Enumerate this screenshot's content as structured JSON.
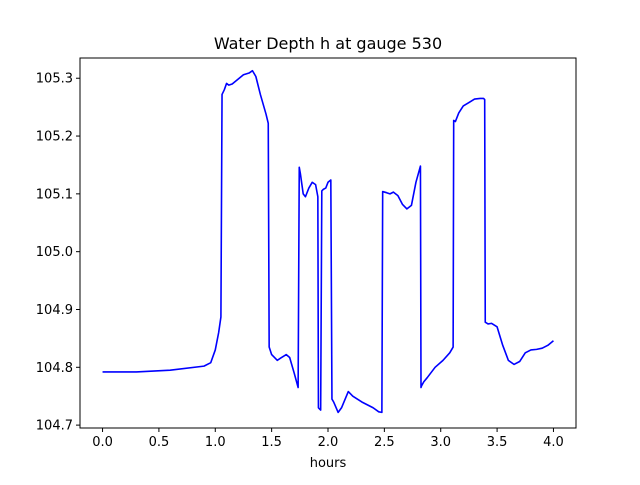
{
  "chart_data": {
    "type": "line",
    "title": "Water Depth h at gauge 530",
    "xlabel": "hours",
    "ylabel": "",
    "xlim": [
      -0.2,
      4.2
    ],
    "ylim": [
      104.695,
      105.335
    ],
    "xticks": [
      0.0,
      0.5,
      1.0,
      1.5,
      2.0,
      2.5,
      3.0,
      3.5,
      4.0
    ],
    "xtick_labels": [
      "0.0",
      "0.5",
      "1.0",
      "1.5",
      "2.0",
      "2.5",
      "3.0",
      "3.5",
      "4.0"
    ],
    "yticks": [
      104.7,
      104.8,
      104.9,
      105.0,
      105.1,
      105.2,
      105.3
    ],
    "ytick_labels": [
      "104.7",
      "104.8",
      "104.9",
      "105.0",
      "105.1",
      "105.2",
      "105.3"
    ],
    "grid": false,
    "series": [
      {
        "color": "#0000ff",
        "x": [
          0.0,
          0.3,
          0.6,
          0.9,
          0.96,
          1.0,
          1.03,
          1.05,
          1.06,
          1.08,
          1.1,
          1.12,
          1.15,
          1.2,
          1.25,
          1.3,
          1.33,
          1.36,
          1.4,
          1.45,
          1.47,
          1.478,
          1.5,
          1.55,
          1.58,
          1.63,
          1.66,
          1.7,
          1.735,
          1.745,
          1.755,
          1.78,
          1.8,
          1.83,
          1.86,
          1.89,
          1.91,
          1.915,
          1.935,
          1.945,
          1.96,
          1.98,
          2.0,
          2.025,
          2.035,
          2.05,
          2.09,
          2.12,
          2.18,
          2.22,
          2.3,
          2.4,
          2.45,
          2.478,
          2.485,
          2.52,
          2.55,
          2.58,
          2.62,
          2.66,
          2.7,
          2.74,
          2.78,
          2.82,
          2.825,
          2.83,
          2.85,
          2.88,
          2.95,
          3.02,
          3.08,
          3.11,
          3.115,
          3.13,
          3.16,
          3.2,
          3.25,
          3.3,
          3.35,
          3.38,
          3.39,
          3.395,
          3.42,
          3.45,
          3.5,
          3.55,
          3.6,
          3.65,
          3.7,
          3.75,
          3.8,
          3.85,
          3.9,
          3.95,
          4.0
        ],
        "y": [
          104.792,
          104.792,
          104.795,
          104.802,
          104.808,
          104.83,
          104.86,
          104.887,
          105.272,
          105.28,
          105.291,
          105.288,
          105.29,
          105.298,
          105.306,
          105.309,
          105.313,
          105.303,
          105.272,
          105.238,
          105.222,
          104.835,
          104.822,
          104.812,
          104.816,
          104.822,
          104.817,
          104.79,
          104.765,
          105.146,
          105.135,
          105.1,
          105.095,
          105.11,
          105.12,
          105.116,
          105.095,
          104.73,
          104.726,
          105.105,
          105.108,
          105.11,
          105.12,
          105.124,
          104.745,
          104.74,
          104.722,
          104.73,
          104.758,
          104.75,
          104.74,
          104.73,
          104.723,
          104.722,
          105.104,
          105.102,
          105.1,
          105.103,
          105.097,
          105.082,
          105.074,
          105.08,
          105.12,
          105.148,
          104.765,
          104.768,
          104.775,
          104.782,
          104.8,
          104.812,
          104.825,
          104.835,
          105.227,
          105.225,
          105.24,
          105.252,
          105.258,
          105.264,
          105.265,
          105.265,
          105.263,
          104.878,
          104.875,
          104.876,
          104.87,
          104.838,
          104.812,
          104.805,
          104.81,
          104.825,
          104.83,
          104.831,
          104.833,
          104.838,
          104.846
        ]
      }
    ]
  }
}
